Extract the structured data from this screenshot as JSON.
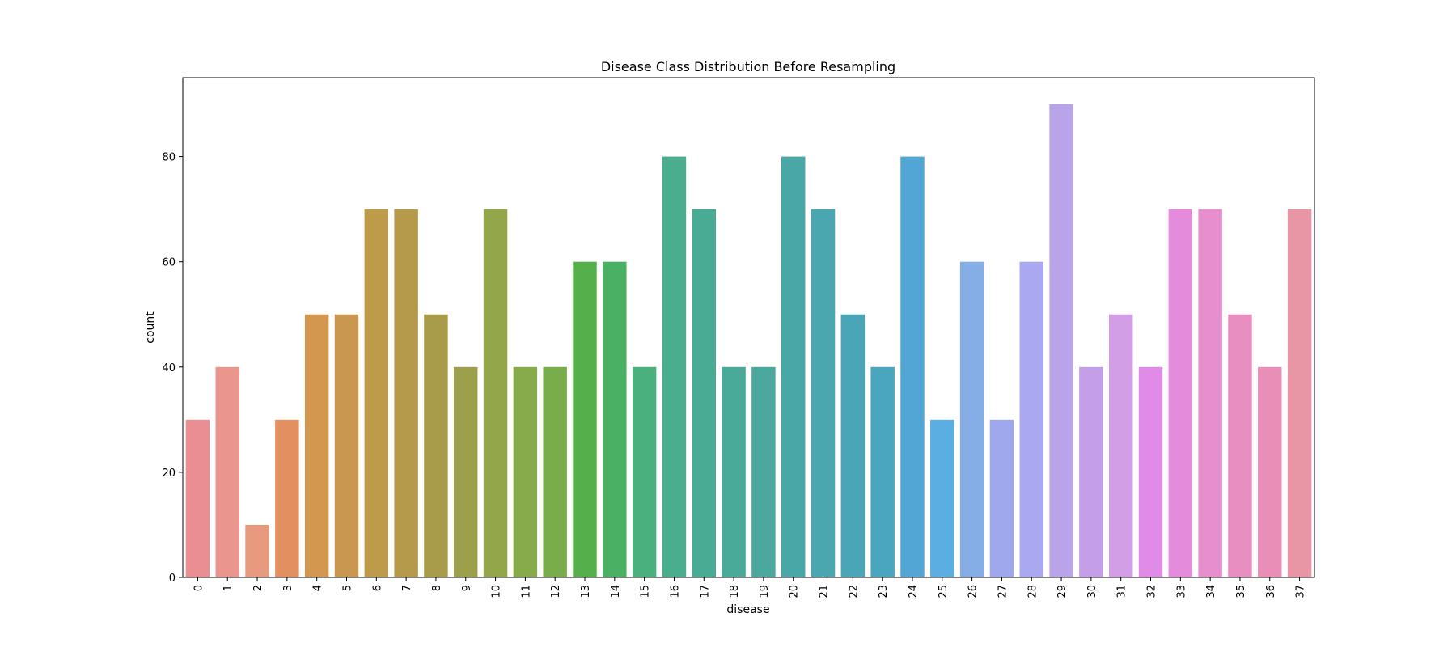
{
  "chart_data": {
    "type": "bar",
    "title": "Disease Class Distribution Before Resampling",
    "xlabel": "disease",
    "ylabel": "count",
    "ylim": [
      0,
      95
    ],
    "yticks": [
      0,
      20,
      40,
      60,
      80
    ],
    "grid": false,
    "categories": [
      "0",
      "1",
      "2",
      "3",
      "4",
      "5",
      "6",
      "7",
      "8",
      "9",
      "10",
      "11",
      "12",
      "13",
      "14",
      "15",
      "16",
      "17",
      "18",
      "19",
      "20",
      "21",
      "22",
      "23",
      "24",
      "25",
      "26",
      "27",
      "28",
      "29",
      "30",
      "31",
      "32",
      "33",
      "34",
      "35",
      "36",
      "37"
    ],
    "values": [
      30,
      40,
      10,
      30,
      50,
      50,
      70,
      70,
      50,
      40,
      70,
      40,
      40,
      60,
      60,
      40,
      80,
      70,
      40,
      40,
      80,
      70,
      50,
      40,
      80,
      30,
      60,
      30,
      60,
      90,
      40,
      50,
      40,
      70,
      70,
      50,
      40,
      70
    ],
    "colors": [
      "#ea8e93",
      "#ea968e",
      "#e89a7e",
      "#e48f5f",
      "#d4974f",
      "#c9974f",
      "#be9a4b",
      "#b49a4a",
      "#a89b4a",
      "#9da04a",
      "#94a64a",
      "#87aa4a",
      "#79ac4a",
      "#55b04b",
      "#4ab063",
      "#4ab07e",
      "#4aad8d",
      "#4aab94",
      "#4aaa99",
      "#4aa89e",
      "#4aa7a8",
      "#4aa7b0",
      "#4aa5b6",
      "#4aa5bf",
      "#52a6d6",
      "#5aaee2",
      "#86aee6",
      "#9fa8ec",
      "#a9a8f0",
      "#b9a4ea",
      "#c49ee8",
      "#d29ee6",
      "#e08be8",
      "#e58bdb",
      "#e78ece",
      "#e88ec1",
      "#e98eb6",
      "#e896a6"
    ]
  }
}
